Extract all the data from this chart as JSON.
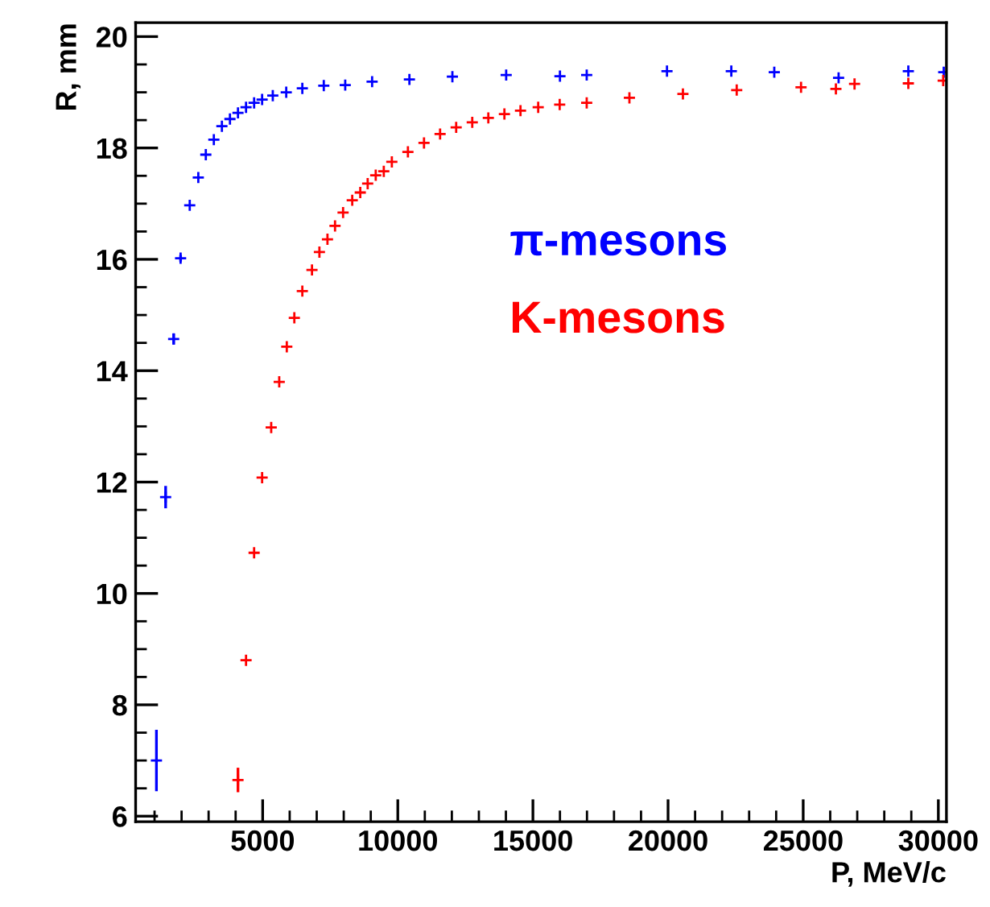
{
  "chart_data": {
    "type": "scatter",
    "xlabel": "P, MeV/c",
    "ylabel": "R, mm",
    "xlim": [
      300,
      30300
    ],
    "ylim": [
      5.9,
      20.25
    ],
    "xticks": [
      5000,
      10000,
      15000,
      20000,
      25000,
      30000
    ],
    "yticks": [
      6,
      8,
      10,
      12,
      14,
      16,
      18,
      20
    ],
    "grid": false,
    "legend": "right",
    "marker": "cross",
    "series": [
      {
        "name": "π-mesons",
        "color": "#0000ff",
        "x": [
          1070,
          1410,
          1708,
          1964,
          2302,
          2619,
          2897,
          3194,
          3492,
          3790,
          4087,
          4385,
          4684,
          4980,
          5375,
          5873,
          6468,
          7262,
          8055,
          9050,
          10430,
          12020,
          14010,
          16000,
          16990,
          19960,
          22340,
          23930,
          26310,
          28890,
          30200
        ],
        "values": [
          7.0,
          11.73,
          14.57,
          16.02,
          16.97,
          17.47,
          17.88,
          18.15,
          18.39,
          18.52,
          18.63,
          18.73,
          18.81,
          18.87,
          18.94,
          19.0,
          19.07,
          19.12,
          19.13,
          19.19,
          19.23,
          19.28,
          19.31,
          19.29,
          19.31,
          19.38,
          19.38,
          19.36,
          19.26,
          19.38,
          19.36
        ],
        "errors": [
          0.55,
          0.2,
          0.1,
          0.06,
          null,
          null,
          null,
          null,
          null,
          null,
          null,
          null,
          null,
          null,
          null,
          null,
          null,
          null,
          null,
          null,
          null,
          null,
          null,
          null,
          null,
          null,
          null,
          null,
          null,
          null,
          null
        ]
      },
      {
        "name": "K-mesons",
        "color": "#ff0000",
        "x": [
          4087,
          4385,
          4684,
          4980,
          5316,
          5613,
          5893,
          6172,
          6468,
          6825,
          7100,
          7398,
          7678,
          7976,
          8315,
          8612,
          8886,
          9184,
          9482,
          9780,
          10375,
          10970,
          11565,
          12160,
          12755,
          13350,
          13945,
          14540,
          15195,
          15990,
          16990,
          18570,
          20550,
          22540,
          24920,
          26210,
          26900,
          28890,
          30180
        ],
        "values": [
          6.65,
          8.8,
          10.73,
          12.08,
          12.98,
          13.8,
          14.43,
          14.95,
          15.43,
          15.81,
          16.13,
          16.36,
          16.6,
          16.84,
          17.06,
          17.2,
          17.36,
          17.51,
          17.58,
          17.75,
          17.93,
          18.09,
          18.25,
          18.37,
          18.46,
          18.54,
          18.61,
          18.67,
          18.73,
          18.78,
          18.81,
          18.9,
          18.97,
          19.04,
          19.09,
          19.06,
          19.15,
          19.16,
          19.21
        ],
        "errors": [
          0.22,
          null,
          null,
          null,
          null,
          null,
          null,
          null,
          null,
          null,
          null,
          null,
          null,
          null,
          null,
          null,
          null,
          null,
          null,
          null,
          null,
          null,
          null,
          null,
          null,
          null,
          null,
          null,
          null,
          null,
          null,
          null,
          null,
          null,
          null,
          null,
          null,
          null,
          null
        ]
      }
    ]
  }
}
